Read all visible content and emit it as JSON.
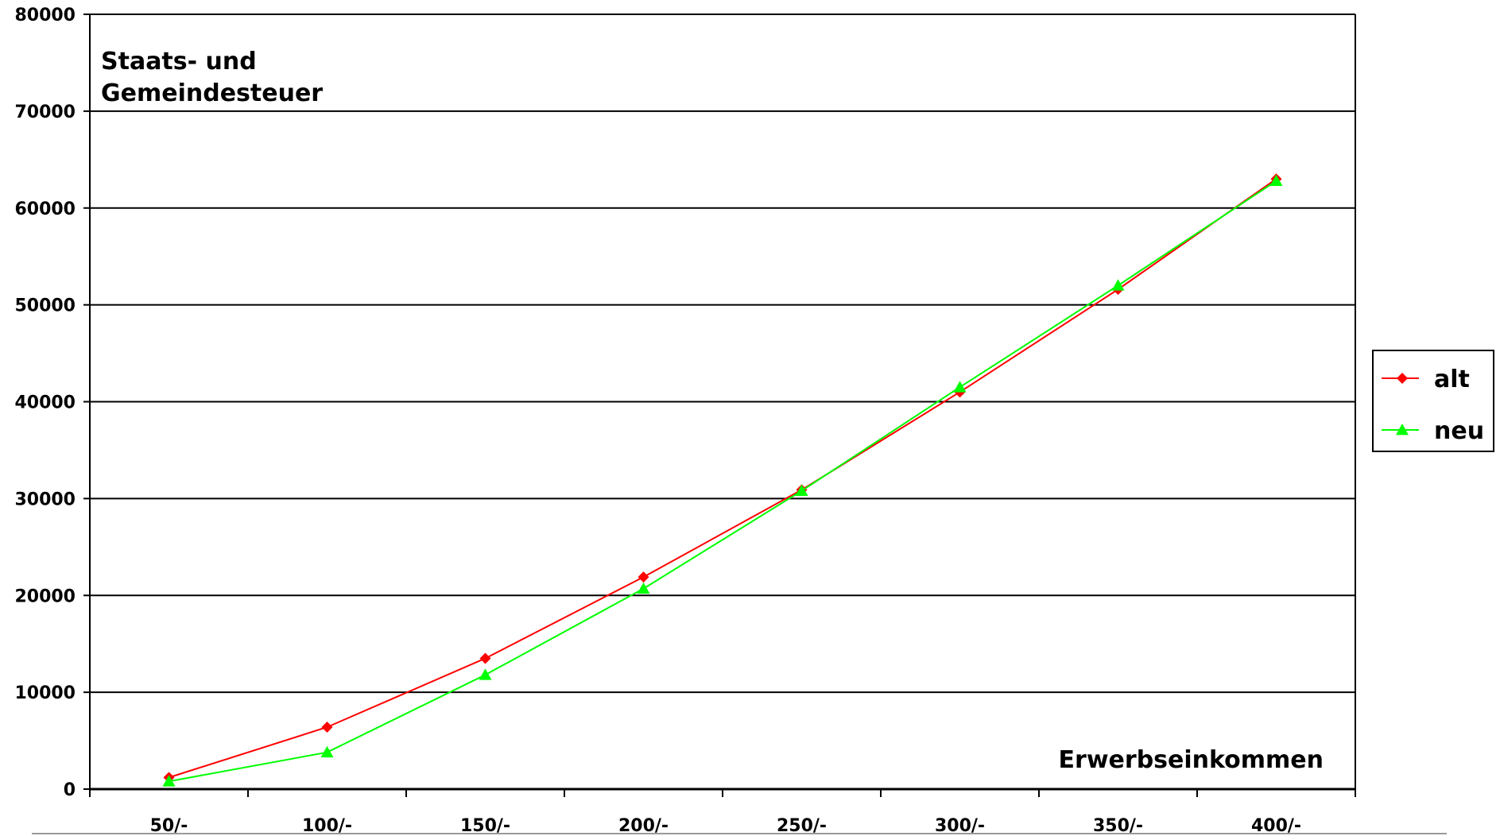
{
  "chart_data": {
    "type": "line",
    "ylabel": [
      "Staats- und",
      "Gemeindesteuer"
    ],
    "xlabel": "Erwerbseinkommen",
    "categories": [
      "50/-",
      "100/-",
      "150/-",
      "200/-",
      "250/-",
      "300/-",
      "350/-",
      "400/-"
    ],
    "ylim": [
      0,
      80000
    ],
    "yticks": [
      0,
      10000,
      20000,
      30000,
      40000,
      50000,
      60000,
      70000,
      80000
    ],
    "grid": true,
    "legend_position": "right",
    "series": [
      {
        "name": "alt",
        "color": "#ff0000",
        "marker": "diamond",
        "values": [
          1200,
          6400,
          13500,
          21900,
          30900,
          41000,
          51600,
          63000
        ]
      },
      {
        "name": "neu",
        "color": "#00ff00",
        "marker": "triangle",
        "values": [
          800,
          3800,
          11800,
          20700,
          30800,
          41500,
          52000,
          62800
        ]
      }
    ]
  }
}
